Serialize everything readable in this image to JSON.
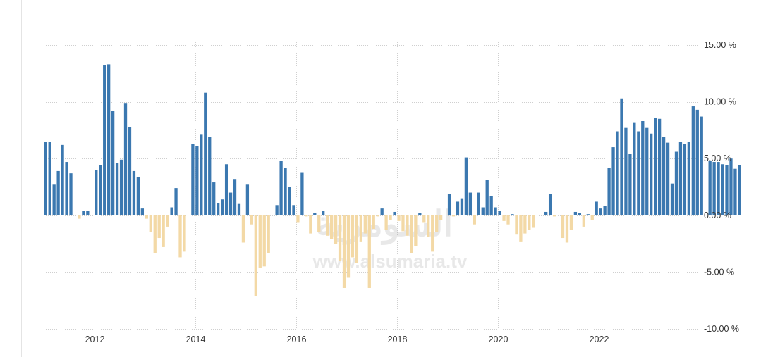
{
  "colors": {
    "positive": "#3b78b0",
    "negative": "#f3d9a6",
    "grid": "#cfcfcf",
    "text": "#333333"
  },
  "watermark": {
    "logo_text": "السومرية",
    "url_text": "www.alsumaria.tv"
  },
  "chart_data": {
    "type": "bar",
    "title": "",
    "xlabel": "",
    "ylabel": "",
    "ylim": [
      -10,
      15
    ],
    "y_axis_side": "right",
    "grid": true,
    "x_range": [
      "2011-01",
      "2023-12"
    ],
    "x_ticks": [
      {
        "x": "2012-01",
        "label": "2012"
      },
      {
        "x": "2014-01",
        "label": "2014"
      },
      {
        "x": "2016-01",
        "label": "2016"
      },
      {
        "x": "2018-01",
        "label": "2018"
      },
      {
        "x": "2020-01",
        "label": "2020"
      },
      {
        "x": "2022-01",
        "label": "2022"
      }
    ],
    "y_ticks": [
      {
        "value": 15,
        "label": "15.00 %"
      },
      {
        "value": 10,
        "label": "10.00 %"
      },
      {
        "value": 5,
        "label": "5.00 %"
      },
      {
        "value": 0,
        "label": "0.00 %"
      },
      {
        "value": -5,
        "label": "-5.00 %"
      },
      {
        "value": -10,
        "label": "-10.00 %"
      }
    ],
    "series": [
      {
        "frequency": "monthly",
        "start": "2011-01",
        "values": [
          6.5,
          6.5,
          2.7,
          3.9,
          6.2,
          4.7,
          3.7,
          0.0,
          -0.3,
          0.4,
          0.4,
          0.0,
          4.0,
          4.4,
          13.2,
          13.3,
          9.2,
          4.6,
          4.9,
          9.9,
          7.8,
          3.9,
          3.4,
          0.6,
          -0.3,
          -1.5,
          -3.3,
          -2.0,
          -2.8,
          -1.0,
          0.7,
          2.4,
          -3.7,
          -3.2,
          0.0,
          6.3,
          6.1,
          7.1,
          10.8,
          6.9,
          2.9,
          1.1,
          1.4,
          4.5,
          2.0,
          3.2,
          1.0,
          -2.4,
          2.7,
          -0.8,
          -7.1,
          -4.6,
          -4.5,
          -3.3,
          0.0,
          0.9,
          4.8,
          4.2,
          2.5,
          0.9,
          -0.6,
          3.8,
          -0.1,
          -1.6,
          0.2,
          -1.5,
          0.4,
          -1.8,
          -2.1,
          -2.5,
          -4.0,
          -6.4,
          -5.5,
          -3.7,
          -4.2,
          -2.3,
          -1.6,
          -6.4,
          -1.2,
          -0.1,
          0.6,
          -1.3,
          -0.4,
          0.3,
          -0.5,
          -1.4,
          -1.8,
          -3.3,
          -2.7,
          0.2,
          -0.6,
          -1.9,
          -3.2,
          -1.5,
          -0.4,
          0.0,
          1.9,
          -0.1,
          1.2,
          1.5,
          5.1,
          2.0,
          -0.8,
          2.0,
          0.7,
          3.1,
          1.7,
          0.7,
          0.4,
          -0.5,
          -0.8,
          0.1,
          -1.7,
          -2.3,
          -1.6,
          -1.3,
          -1.1,
          0.0,
          0.0,
          0.3,
          1.9,
          -0.1,
          0.0,
          -2.0,
          -2.4,
          -1.3,
          0.3,
          0.2,
          -1.0,
          0.1,
          -0.4,
          1.2,
          0.6,
          0.8,
          4.2,
          6.0,
          7.4,
          10.3,
          7.7,
          5.4,
          8.2,
          7.4,
          8.3,
          7.7,
          7.2,
          8.6,
          8.5,
          6.9,
          6.4,
          2.8,
          5.6,
          6.5,
          6.3,
          6.5,
          9.6,
          9.3,
          8.7,
          0.0,
          4.8,
          4.7,
          4.7,
          4.5,
          4.4,
          5.0,
          4.1,
          4.4
        ]
      }
    ]
  }
}
